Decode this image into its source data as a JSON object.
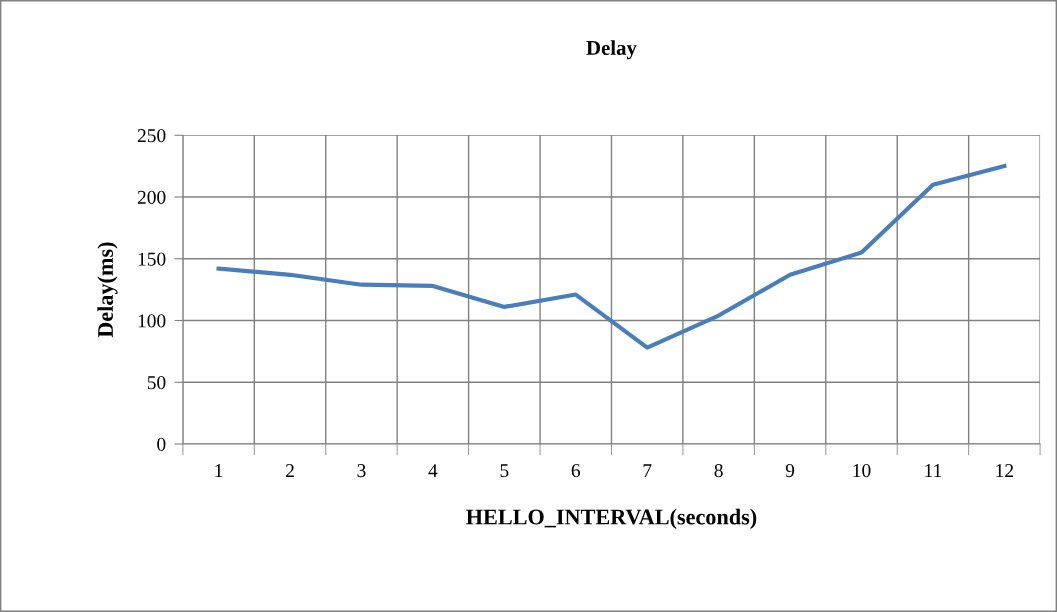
{
  "chart_data": {
    "type": "line",
    "title": "Delay",
    "xlabel": "HELLO_INTERVAL(seconds)",
    "ylabel": "Delay(ms)",
    "categories": [
      "1",
      "2",
      "3",
      "4",
      "5",
      "6",
      "7",
      "8",
      "9",
      "10",
      "11",
      "12"
    ],
    "series": [
      {
        "color": "#4a7ebb",
        "values": [
          142,
          137,
          129,
          128,
          111,
          121,
          78,
          104,
          137,
          155,
          210,
          225
        ]
      }
    ],
    "ylim": [
      0,
      250
    ],
    "yticks": [
      0,
      50,
      100,
      150,
      200,
      250
    ],
    "grid": true,
    "legend": false,
    "marker": "none",
    "line_style": "solid"
  }
}
